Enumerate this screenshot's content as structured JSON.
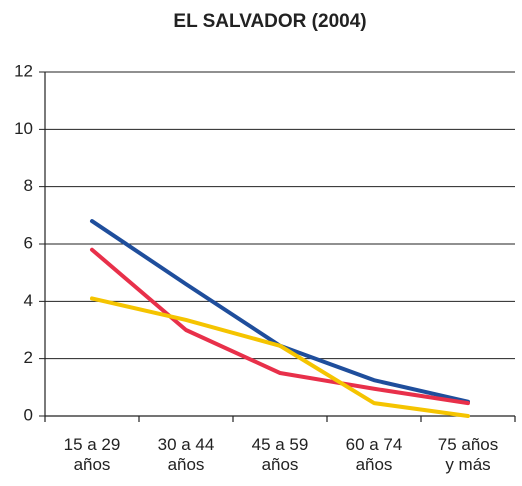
{
  "chart_data": {
    "type": "line",
    "title": "EL SALVADOR (2004)",
    "categories": [
      "15 a 29\naños",
      "30 a 44\naños",
      "45 a 59\naños",
      "60 a 74\naños",
      "75 años\ny más"
    ],
    "series": [
      {
        "color": "#1f4e9c",
        "values": [
          6.8,
          4.6,
          2.45,
          1.25,
          0.5
        ]
      },
      {
        "color": "#e8304a",
        "values": [
          5.8,
          3.0,
          1.5,
          0.95,
          0.45
        ]
      },
      {
        "color": "#f5c400",
        "values": [
          4.1,
          3.35,
          2.45,
          0.45,
          0.0
        ]
      }
    ],
    "ylim": [
      0,
      12
    ],
    "yticks": [
      0,
      2,
      4,
      6,
      8,
      10,
      12
    ],
    "grid": true
  }
}
